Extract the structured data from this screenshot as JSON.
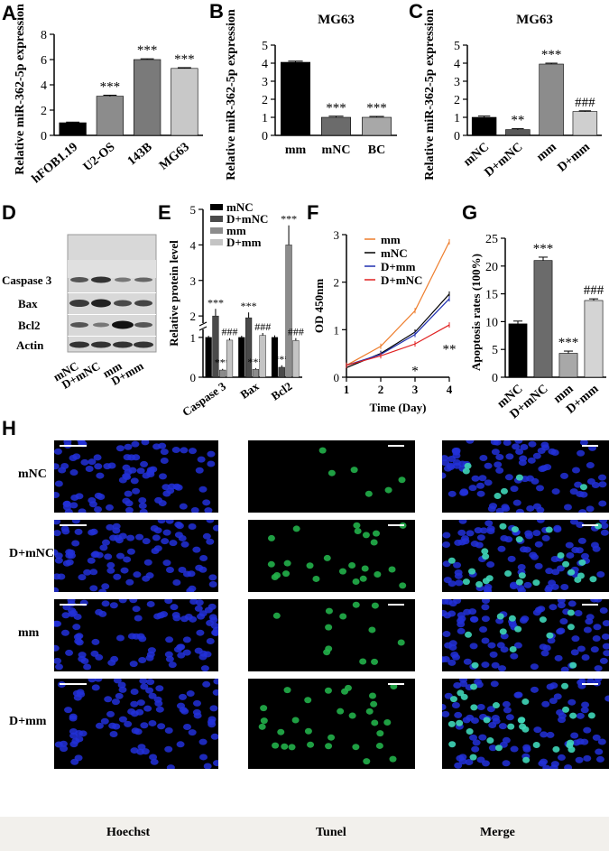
{
  "panels": {
    "A": {
      "letter": "A",
      "chart_data": {
        "type": "bar",
        "categories": [
          "hFOB1.19",
          "U2-OS",
          "143B",
          "MG63"
        ],
        "values": [
          1.0,
          3.1,
          6.0,
          5.3
        ],
        "errors": [
          0.05,
          0.08,
          0.06,
          0.06
        ],
        "colors": [
          "#000000",
          "#8c8c8c",
          "#7a7a7a",
          "#c8c8c8"
        ],
        "sig": [
          "",
          "***",
          "***",
          "***"
        ],
        "ylabel": "Relative miR-362-5p expression",
        "ylim": [
          0,
          8
        ],
        "yticks": [
          0,
          2,
          4,
          6,
          8
        ]
      }
    },
    "B": {
      "letter": "B",
      "chart_data": {
        "type": "bar",
        "title": "MG63",
        "categories": [
          "mm",
          "mNC",
          "BC"
        ],
        "values": [
          4.05,
          1.0,
          1.0
        ],
        "errors": [
          0.06,
          0.06,
          0.05
        ],
        "colors": [
          "#000000",
          "#6b6b6b",
          "#a8a8a8"
        ],
        "sig": [
          "",
          "***",
          "***"
        ],
        "ylabel": "Relative miR-362-5p expression",
        "ylim": [
          0,
          5
        ],
        "yticks": [
          0,
          1,
          2,
          3,
          4,
          5
        ]
      }
    },
    "C": {
      "letter": "C",
      "chart_data": {
        "type": "bar",
        "title": "MG63",
        "categories": [
          "mNC",
          "D+mNC",
          "mm",
          "D+mm"
        ],
        "values": [
          1.0,
          0.32,
          3.95,
          1.32
        ],
        "errors": [
          0.07,
          0.05,
          0.05,
          0.04
        ],
        "colors": [
          "#000000",
          "#5a5a5a",
          "#8c8c8c",
          "#cfcfcf"
        ],
        "sig": [
          "",
          "**",
          "***",
          "###"
        ],
        "ylabel": "Relative miR-362-5p expression",
        "ylim": [
          0,
          5
        ],
        "yticks": [
          0,
          1,
          2,
          3,
          4,
          5
        ]
      }
    },
    "D": {
      "letter": "D",
      "rows": [
        "Caspase 3",
        "Bax",
        "Bcl2",
        "Actin"
      ],
      "lanes": [
        "mNC",
        "D+mNC",
        "mm",
        "D+mm"
      ]
    },
    "E": {
      "letter": "E",
      "chart_data": {
        "type": "bar",
        "categories": [
          "Caspase 3",
          "Bax",
          "Bcl2"
        ],
        "series": [
          {
            "name": "mNC",
            "values": [
              1.0,
              1.0,
              1.0
            ],
            "errors": [
              0.04,
              0.04,
              0.05
            ],
            "color": "#000000",
            "sig": [
              "",
              "",
              ""
            ]
          },
          {
            "name": "D+mNC",
            "values": [
              2.0,
              1.95,
              0.25
            ],
            "errors": [
              0.2,
              0.15,
              0.05
            ],
            "color": "#4a4a4a",
            "sig": [
              "***",
              "***",
              "***"
            ]
          },
          {
            "name": "mm",
            "values": [
              0.18,
              0.2,
              4.0
            ],
            "errors": [
              0.03,
              0.03,
              0.55
            ],
            "color": "#8c8c8c",
            "sig": [
              "***",
              "***",
              "***"
            ]
          },
          {
            "name": "D+mm",
            "values": [
              0.93,
              1.05,
              0.92
            ],
            "errors": [
              0.05,
              0.06,
              0.06
            ],
            "color": "#c4c4c4",
            "sig": [
              "###",
              "###",
              "###"
            ]
          }
        ],
        "ylabel": "Relative protein level",
        "yticks": [
          0,
          1,
          2,
          3,
          4,
          5
        ],
        "ylim": [
          0,
          5
        ],
        "axis_break": [
          1.2,
          1.8
        ],
        "legend_position": "top"
      }
    },
    "F": {
      "letter": "F",
      "chart_data": {
        "type": "line",
        "x": [
          1,
          2,
          3,
          4
        ],
        "series": [
          {
            "name": "mm",
            "values": [
              0.25,
              0.65,
              1.4,
              2.85
            ],
            "color": "#ee7d2c"
          },
          {
            "name": "mNC",
            "values": [
              0.2,
              0.5,
              0.95,
              1.75
            ],
            "color": "#000000"
          },
          {
            "name": "D+mm",
            "values": [
              0.25,
              0.48,
              0.9,
              1.65
            ],
            "color": "#1f2fb0"
          },
          {
            "name": "D+mNC",
            "values": [
              0.25,
              0.45,
              0.7,
              1.1
            ],
            "color": "#e02020"
          }
        ],
        "xlabel": "Time (Day)",
        "ylabel": "OD 450nm",
        "xticks": [
          1,
          2,
          3,
          4
        ],
        "yticks": [
          0,
          1,
          2,
          3
        ],
        "ylim": [
          0,
          3
        ],
        "xlim": [
          1,
          4
        ],
        "annotations": [
          "*",
          "**"
        ]
      }
    },
    "G": {
      "letter": "G",
      "chart_data": {
        "type": "bar",
        "categories": [
          "mNC",
          "D+mNC",
          "mm",
          "D+mm"
        ],
        "values": [
          9.6,
          21.0,
          4.3,
          13.8
        ],
        "errors": [
          0.5,
          0.6,
          0.4,
          0.3
        ],
        "colors": [
          "#000000",
          "#6b6b6b",
          "#a8a8a8",
          "#d4d4d4"
        ],
        "sig": [
          "",
          "***",
          "***",
          "###"
        ],
        "ylabel": "Apoptosis rates (100%)",
        "ylim": [
          0,
          25
        ],
        "yticks": [
          0,
          5,
          10,
          15,
          20,
          25
        ]
      }
    },
    "H": {
      "letter": "H",
      "rows": [
        "mNC",
        "D+mNC",
        "mm",
        "D+mm"
      ],
      "columns": [
        "Hoechst",
        "Tunel",
        "Merge"
      ]
    }
  }
}
